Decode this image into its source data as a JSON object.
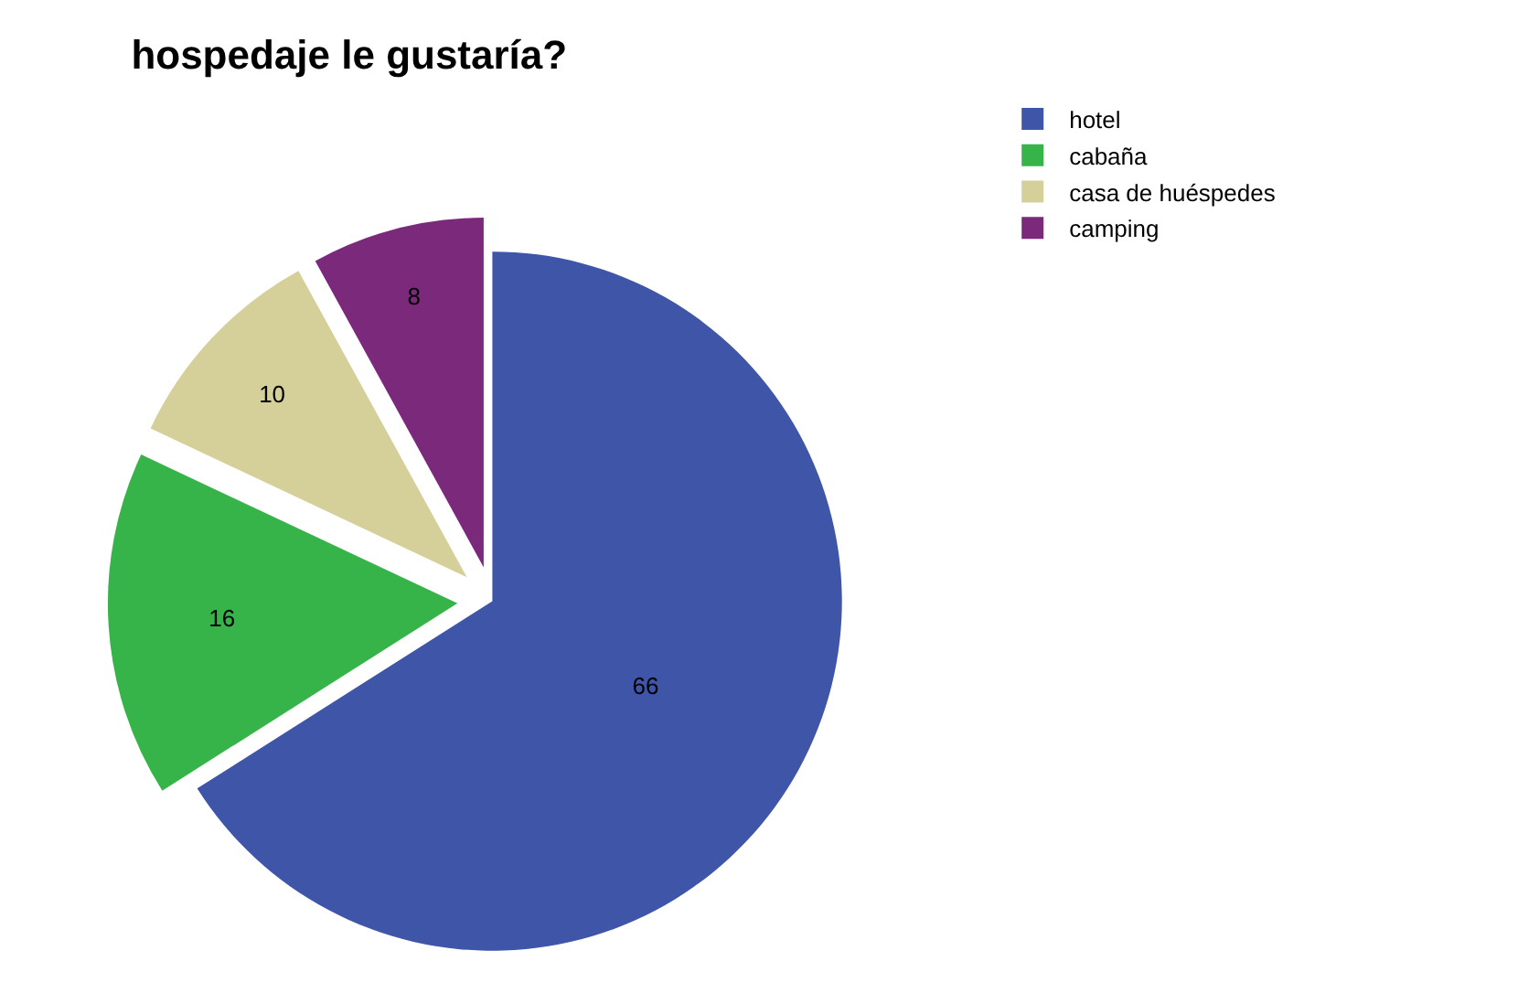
{
  "chart_data": {
    "type": "pie",
    "title": "hospedaje le gustaría?",
    "categories": [
      "hotel",
      "cabaña",
      "casa de huéspedes",
      "camping"
    ],
    "values": [
      66,
      16,
      10,
      8
    ],
    "colors": [
      "#3f55a8",
      "#37b449",
      "#d5cf9a",
      "#7b2a7b"
    ],
    "data_labels": true,
    "legend": "top right"
  }
}
